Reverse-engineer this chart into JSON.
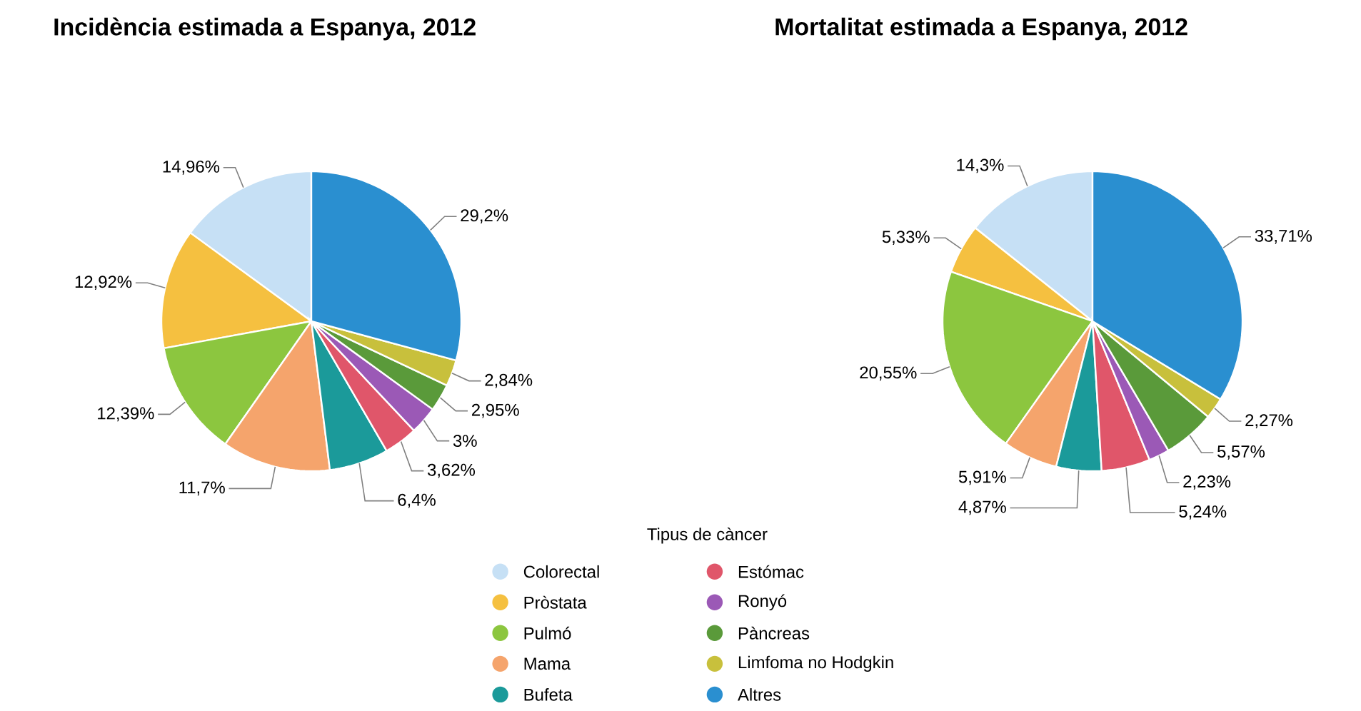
{
  "chart_data": [
    {
      "type": "pie",
      "title": "Incidència estimada a Espanya, 2012",
      "legend_title": "Tipus de càncer",
      "legend": "bottom",
      "categories": [
        "Colorectal",
        "Pròstata",
        "Pulmó",
        "Mama",
        "Bufeta",
        "Estómac",
        "Ronyó",
        "Pàncreas",
        "Limfoma no Hodgkin",
        "Altres"
      ],
      "values": [
        14.96,
        12.92,
        12.39,
        11.7,
        6.4,
        3.62,
        3,
        2.95,
        2.84,
        29.2
      ],
      "value_labels": [
        "14,96%",
        "12,92%",
        "12,39%",
        "11,7%",
        "6,4%",
        "3,62%",
        "3%",
        "2,95%",
        "2,84%",
        "29,2%"
      ],
      "colors": [
        "#c6e0f5",
        "#f5c040",
        "#8cc63f",
        "#f5a46c",
        "#1b9a9a",
        "#e0566a",
        "#9b59b6",
        "#5a9a3a",
        "#c8c03c",
        "#2a8fd0"
      ]
    },
    {
      "type": "pie",
      "title": "Mortalitat estimada a Espanya, 2012",
      "categories": [
        null,
        null,
        null,
        null,
        null,
        null,
        null,
        null,
        null,
        null
      ],
      "values": [
        14.3,
        5.33,
        20.55,
        5.91,
        4.87,
        5.24,
        2.23,
        5.57,
        2.27,
        33.71
      ],
      "value_labels": [
        "14,3%",
        "5,33%",
        "20,55%",
        "5,91%",
        "4,87%",
        "5,24%",
        "2,23%",
        "5,57%",
        "2,27%",
        "33,71%"
      ],
      "colors": [
        "#c6e0f5",
        "#f5c040",
        "#8cc63f",
        "#f5a46c",
        "#1b9a9a",
        "#e0566a",
        "#9b59b6",
        "#5a9a3a",
        "#c8c03c",
        "#2a8fd0"
      ]
    }
  ]
}
